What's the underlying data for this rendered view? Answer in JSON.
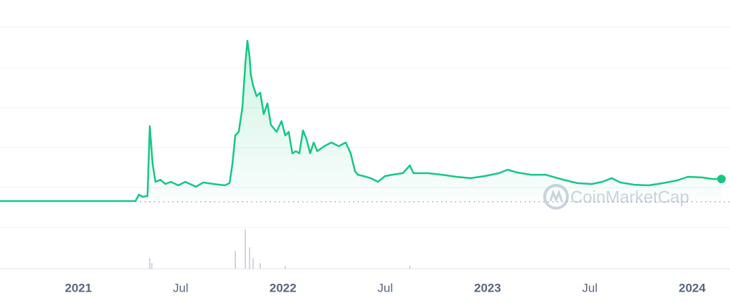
{
  "chart_data": {
    "type": "line",
    "color": "#16c784",
    "watermark": "CoinMarketCap",
    "xlim": [
      2020.617,
      2024.185
    ],
    "ylim": [
      0,
      130
    ],
    "xticks": [
      2021,
      {
        "value": 2021.5,
        "label": "Jul"
      },
      2022,
      {
        "value": 2022.5,
        "label": "Jul"
      },
      2023,
      {
        "value": 2023.5,
        "label": "Jul"
      },
      2024
    ],
    "x": [
      2020.617,
      2021.279,
      2021.296,
      2021.314,
      2021.338,
      2021.349,
      2021.363,
      2021.377,
      2021.401,
      2021.425,
      2021.453,
      2021.488,
      2021.523,
      2021.575,
      2021.61,
      2021.662,
      2021.715,
      2021.739,
      2021.753,
      2021.767,
      2021.784,
      2021.802,
      2021.816,
      2021.826,
      2021.837,
      2021.843,
      2021.854,
      2021.871,
      2021.889,
      2021.906,
      2021.924,
      2021.941,
      2021.969,
      2021.993,
      2022.011,
      2022.028,
      2022.046,
      2022.063,
      2022.08,
      2022.098,
      2022.115,
      2022.133,
      2022.15,
      2022.168,
      2022.202,
      2022.237,
      2022.272,
      2022.307,
      2022.331,
      2022.352,
      2022.366,
      2022.394,
      2022.429,
      2022.464,
      2022.499,
      2022.533,
      2022.586,
      2022.62,
      2022.638,
      2022.708,
      2022.777,
      2022.847,
      2022.917,
      2022.986,
      2023.056,
      2023.098,
      2023.143,
      2023.213,
      2023.283,
      2023.37,
      2023.439,
      2023.509,
      2023.561,
      2023.607,
      2023.648,
      2023.718,
      2023.788,
      2023.857,
      2023.927,
      2023.979,
      2024.049,
      2024.101,
      2024.143
    ],
    "values": [
      0.5,
      0.5,
      5.1,
      3.6,
      4.1,
      54.5,
      27.2,
      14.4,
      15.9,
      12.8,
      14.4,
      11.8,
      14.4,
      10.8,
      13.9,
      12.8,
      11.8,
      13.4,
      27.2,
      47.8,
      50.4,
      68.3,
      99.2,
      116.1,
      104.3,
      91.5,
      83.8,
      76.1,
      78.6,
      63.2,
      70.9,
      55.5,
      50.4,
      58.1,
      47.8,
      50.4,
      34.9,
      36.5,
      34.9,
      51.4,
      45.2,
      34.9,
      42.7,
      36.5,
      40.1,
      42.7,
      40.1,
      42.7,
      34.9,
      22.1,
      19.5,
      18.5,
      17.0,
      14.4,
      18.5,
      19.5,
      20.6,
      26.2,
      20.6,
      20.6,
      19.5,
      18.0,
      17.0,
      18.5,
      20.6,
      23.1,
      21.1,
      19.5,
      19.5,
      15.9,
      13.4,
      12.8,
      14.4,
      17.0,
      13.9,
      12.3,
      11.8,
      13.4,
      15.4,
      18.0,
      17.5,
      16.4,
      16.4
    ],
    "volume": {
      "ylim": [
        0,
        60
      ],
      "x": [
        2021.349,
        2021.359,
        2021.767,
        2021.816,
        2021.837,
        2021.854,
        2021.889,
        2022.011,
        2022.62
      ],
      "values": [
        15,
        8,
        25,
        55,
        30,
        15,
        8,
        4,
        4
      ]
    }
  }
}
